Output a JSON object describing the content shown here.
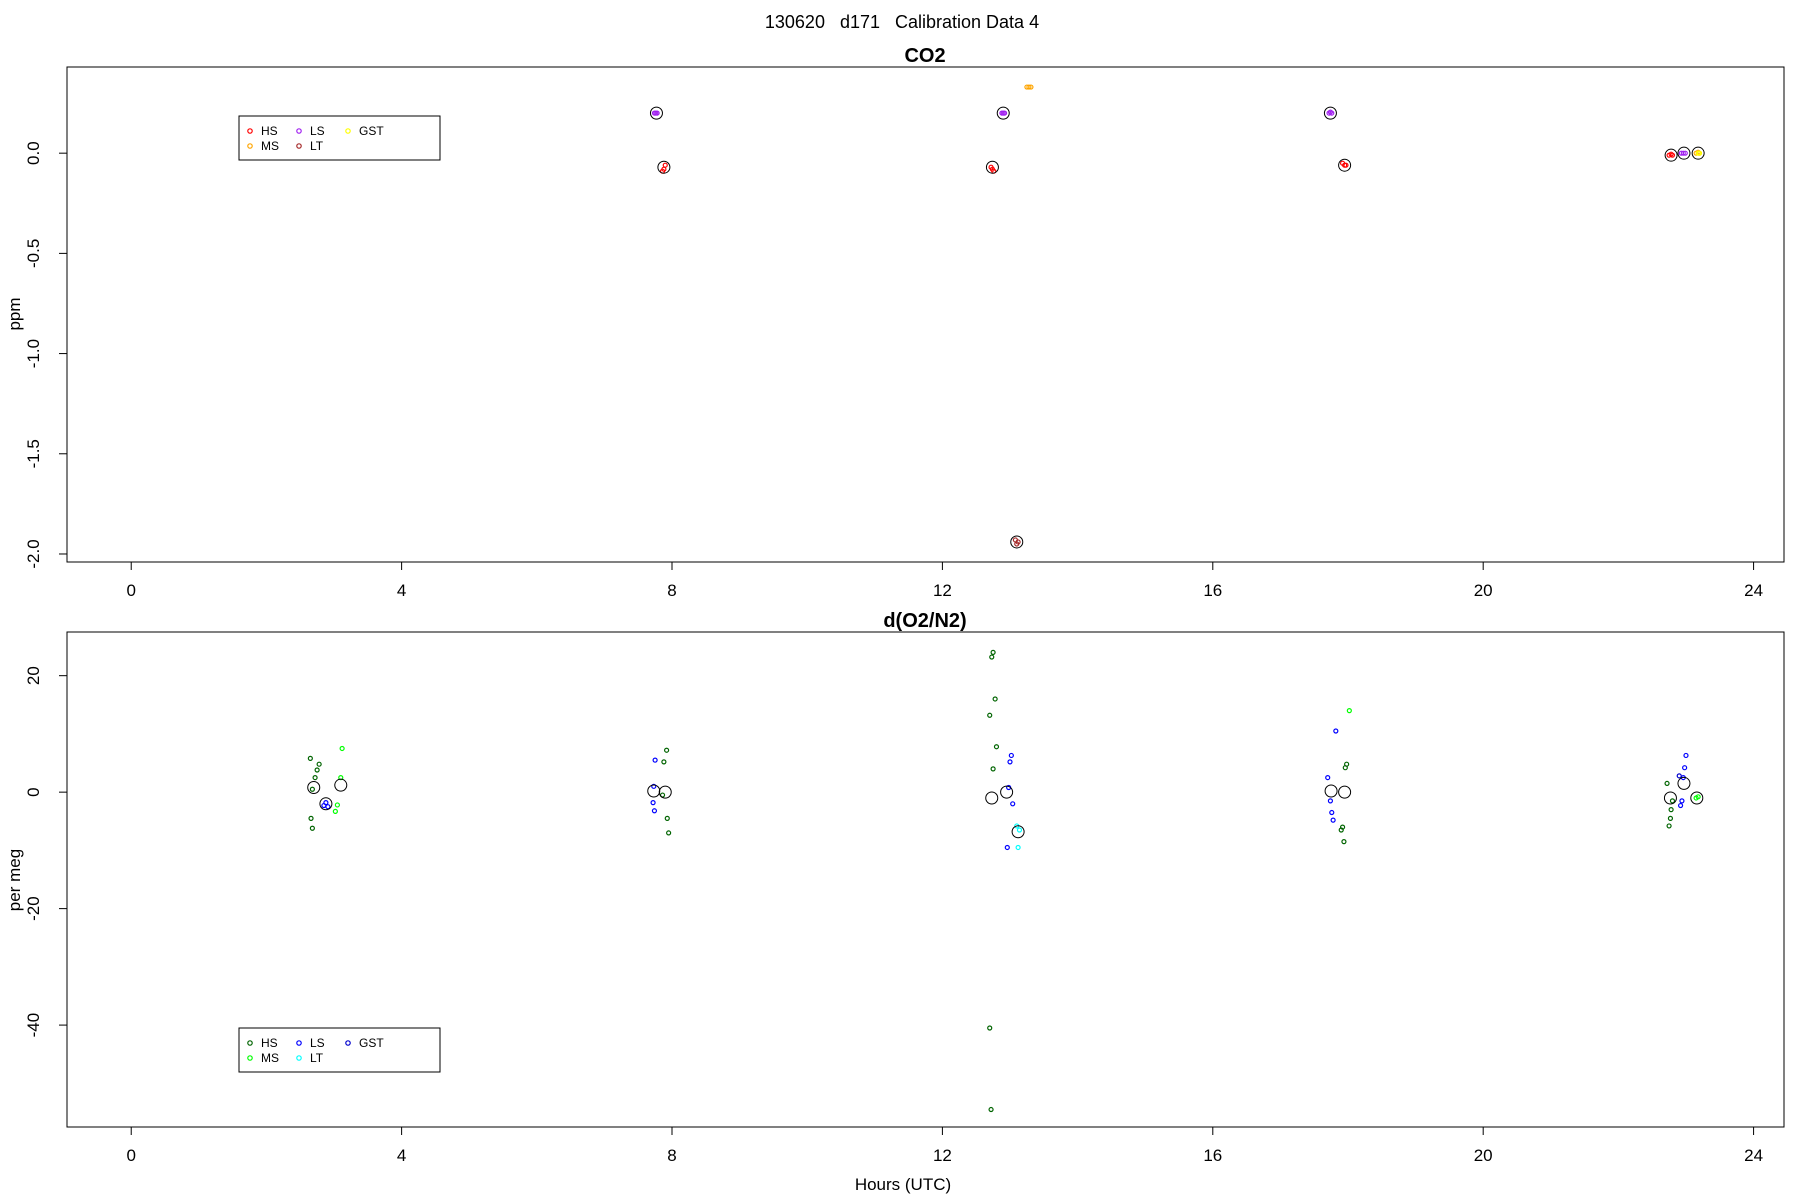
{
  "figure": {
    "title": "130620   d171   Calibration Data 4",
    "xlabel": "Hours (UTC)"
  },
  "chart_data": [
    {
      "type": "scatter",
      "title": "CO2",
      "ylabel": "ppm",
      "xlim": [
        -0.95,
        24.45
      ],
      "ylim": [
        -2.04,
        0.43
      ],
      "xticks": [
        0,
        4,
        8,
        12,
        16,
        20,
        24
      ],
      "yticks": [
        0.0,
        -0.5,
        -1.0,
        -1.5,
        -2.0
      ],
      "ytick_labels": [
        "0.0",
        "-0.5",
        "-1.0",
        "-1.5",
        "-2.0"
      ],
      "grid": false,
      "legend": {
        "position": "upper-left",
        "entries": [
          {
            "label": "HS",
            "color": "#ff0000"
          },
          {
            "label": "MS",
            "color": "#ffa500"
          },
          {
            "label": "LS",
            "color": "#a020f0"
          },
          {
            "label": "LT",
            "color": "#a52a2a"
          },
          {
            "label": "GST",
            "color": "#ffff00"
          }
        ]
      },
      "series": [
        {
          "name": "HS",
          "color": "#ff0000",
          "points": [
            [
              7.9,
              -0.06
            ],
            [
              7.88,
              -0.08
            ],
            [
              7.86,
              -0.09
            ],
            [
              12.72,
              -0.07
            ],
            [
              12.74,
              -0.08
            ],
            [
              12.76,
              -0.09
            ],
            [
              17.92,
              -0.05
            ],
            [
              17.95,
              -0.06
            ],
            [
              17.97,
              -0.06
            ],
            [
              22.75,
              -0.01
            ],
            [
              22.78,
              -0.005
            ],
            [
              22.8,
              -0.01
            ]
          ]
        },
        {
          "name": "MS",
          "color": "#ffa500",
          "points": [
            [
              13.25,
              0.33
            ],
            [
              13.28,
              0.33
            ],
            [
              13.31,
              0.33
            ],
            [
              23.15,
              0.0
            ],
            [
              23.18,
              0.005
            ],
            [
              23.2,
              0.0
            ]
          ]
        },
        {
          "name": "LS",
          "color": "#a020f0",
          "points": [
            [
              7.74,
              0.2
            ],
            [
              7.76,
              0.2
            ],
            [
              7.78,
              0.2
            ],
            [
              12.88,
              0.2
            ],
            [
              12.9,
              0.2
            ],
            [
              12.92,
              0.2
            ],
            [
              17.72,
              0.2
            ],
            [
              17.74,
              0.205
            ],
            [
              17.76,
              0.2
            ],
            [
              22.93,
              0.0
            ],
            [
              22.96,
              0.0
            ],
            [
              22.99,
              0.0
            ]
          ]
        },
        {
          "name": "LT",
          "color": "#a52a2a",
          "points": [
            [
              13.08,
              -1.93
            ],
            [
              13.1,
              -1.95
            ],
            [
              13.12,
              -1.94
            ]
          ]
        },
        {
          "name": "GST",
          "color": "#ffff00",
          "points": [
            [
              23.18,
              0.0
            ],
            [
              23.2,
              0.0
            ]
          ]
        }
      ],
      "means": [
        [
          7.77,
          0.2
        ],
        [
          7.88,
          -0.07
        ],
        [
          12.74,
          -0.07
        ],
        [
          12.9,
          0.2
        ],
        [
          13.1,
          -1.94
        ],
        [
          17.74,
          0.2
        ],
        [
          17.95,
          -0.06
        ],
        [
          22.78,
          -0.01
        ],
        [
          22.97,
          0.0
        ],
        [
          23.18,
          0.0
        ]
      ]
    },
    {
      "type": "scatter",
      "title": "d(O2/N2)",
      "ylabel": "per meg",
      "xlim": [
        -0.95,
        24.45
      ],
      "ylim": [
        -57.5,
        27.5
      ],
      "xticks": [
        0,
        4,
        8,
        12,
        16,
        20,
        24
      ],
      "yticks": [
        20,
        0,
        -20,
        -40
      ],
      "ytick_labels": [
        "20",
        "0",
        "-20",
        "-40"
      ],
      "grid": false,
      "legend": {
        "position": "lower-left",
        "entries": [
          {
            "label": "HS",
            "color": "#006400"
          },
          {
            "label": "MS",
            "color": "#00ff00"
          },
          {
            "label": "LS",
            "color": "#0000ff"
          },
          {
            "label": "LT",
            "color": "#00ffff"
          },
          {
            "label": "GST",
            "color": "#0000cd"
          }
        ]
      },
      "series": [
        {
          "name": "HS",
          "color": "#006400",
          "points": [
            [
              2.65,
              5.8
            ],
            [
              2.78,
              4.8
            ],
            [
              2.75,
              3.8
            ],
            [
              2.72,
              2.5
            ],
            [
              2.68,
              0.5
            ],
            [
              2.66,
              -4.5
            ],
            [
              2.68,
              -6.2
            ],
            [
              7.92,
              7.2
            ],
            [
              7.88,
              5.2
            ],
            [
              7.86,
              -0.5
            ],
            [
              7.93,
              -4.5
            ],
            [
              7.95,
              -7.0
            ],
            [
              12.75,
              24.0
            ],
            [
              12.73,
              23.2
            ],
            [
              12.78,
              16.0
            ],
            [
              12.7,
              13.2
            ],
            [
              12.8,
              7.8
            ],
            [
              12.75,
              4.0
            ],
            [
              12.7,
              -40.5
            ],
            [
              12.72,
              -54.5
            ],
            [
              17.98,
              4.8
            ],
            [
              17.96,
              4.2
            ],
            [
              17.92,
              -6.0
            ],
            [
              17.9,
              -6.5
            ],
            [
              17.94,
              -8.5
            ],
            [
              22.72,
              1.5
            ],
            [
              22.8,
              -1.5
            ],
            [
              22.78,
              -3.0
            ],
            [
              22.77,
              -4.5
            ],
            [
              22.75,
              -5.8
            ]
          ]
        },
        {
          "name": "MS",
          "color": "#00ff00",
          "points": [
            [
              3.12,
              7.5
            ],
            [
              3.1,
              2.5
            ],
            [
              3.05,
              -2.2
            ],
            [
              3.02,
              -3.3
            ],
            [
              18.02,
              14.0
            ],
            [
              23.15,
              -1.0
            ],
            [
              23.18,
              -0.8
            ]
          ]
        },
        {
          "name": "LS",
          "color": "#0000ff",
          "points": [
            [
              2.88,
              -1.8
            ],
            [
              2.91,
              -2.5
            ],
            [
              2.85,
              -2.3
            ],
            [
              7.75,
              5.5
            ],
            [
              7.73,
              1.0
            ],
            [
              7.72,
              -1.8
            ],
            [
              7.74,
              -3.2
            ],
            [
              13.02,
              6.3
            ],
            [
              13.0,
              5.2
            ],
            [
              12.98,
              0.8
            ],
            [
              13.04,
              -2.0
            ],
            [
              12.96,
              -9.5
            ],
            [
              17.82,
              10.5
            ],
            [
              17.7,
              2.5
            ],
            [
              17.74,
              -1.5
            ],
            [
              17.76,
              -3.5
            ],
            [
              17.78,
              -4.8
            ],
            [
              23.0,
              6.3
            ],
            [
              22.98,
              4.2
            ],
            [
              22.96,
              2.5
            ],
            [
              22.94,
              -1.5
            ],
            [
              22.92,
              -2.3
            ]
          ]
        },
        {
          "name": "LT",
          "color": "#00ffff",
          "points": [
            [
              13.1,
              -5.8
            ],
            [
              13.14,
              -6.5
            ],
            [
              13.12,
              -9.5
            ]
          ]
        },
        {
          "name": "GST",
          "color": "#0000cd",
          "points": [
            [
              22.9,
              2.8
            ]
          ]
        }
      ],
      "means": [
        [
          2.7,
          0.8
        ],
        [
          2.88,
          -2.0
        ],
        [
          3.1,
          1.2
        ],
        [
          7.73,
          0.2
        ],
        [
          7.9,
          0.0
        ],
        [
          12.73,
          -1.0
        ],
        [
          12.95,
          0.0
        ],
        [
          13.12,
          -6.8
        ],
        [
          17.75,
          0.2
        ],
        [
          17.95,
          0.0
        ],
        [
          22.77,
          -1.0
        ],
        [
          22.97,
          1.5
        ],
        [
          23.16,
          -1.0
        ]
      ]
    }
  ]
}
